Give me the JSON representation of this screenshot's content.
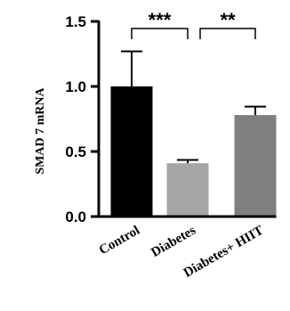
{
  "chart_data": {
    "type": "bar",
    "title": "",
    "xlabel": "",
    "ylabel": "SMAD 7 mRNA",
    "ylim": [
      0,
      1.5
    ],
    "yticks": [
      0.0,
      0.5,
      1.0,
      1.5
    ],
    "ytick_labels": [
      "0.0",
      "0.5",
      "1.0",
      "1.5"
    ],
    "categories": [
      "Control",
      "Diabetes",
      "Diabetes+ HIIT"
    ],
    "values": [
      1.0,
      0.41,
      0.78
    ],
    "errors": [
      0.27,
      0.025,
      0.065
    ],
    "colors": [
      "#000000",
      "#a6a6a8",
      "#7f7f7f"
    ],
    "grid": false,
    "annotations": [
      {
        "from": 0,
        "to": 1,
        "text": "***"
      },
      {
        "from": 1,
        "to": 2,
        "text": "**"
      }
    ]
  }
}
